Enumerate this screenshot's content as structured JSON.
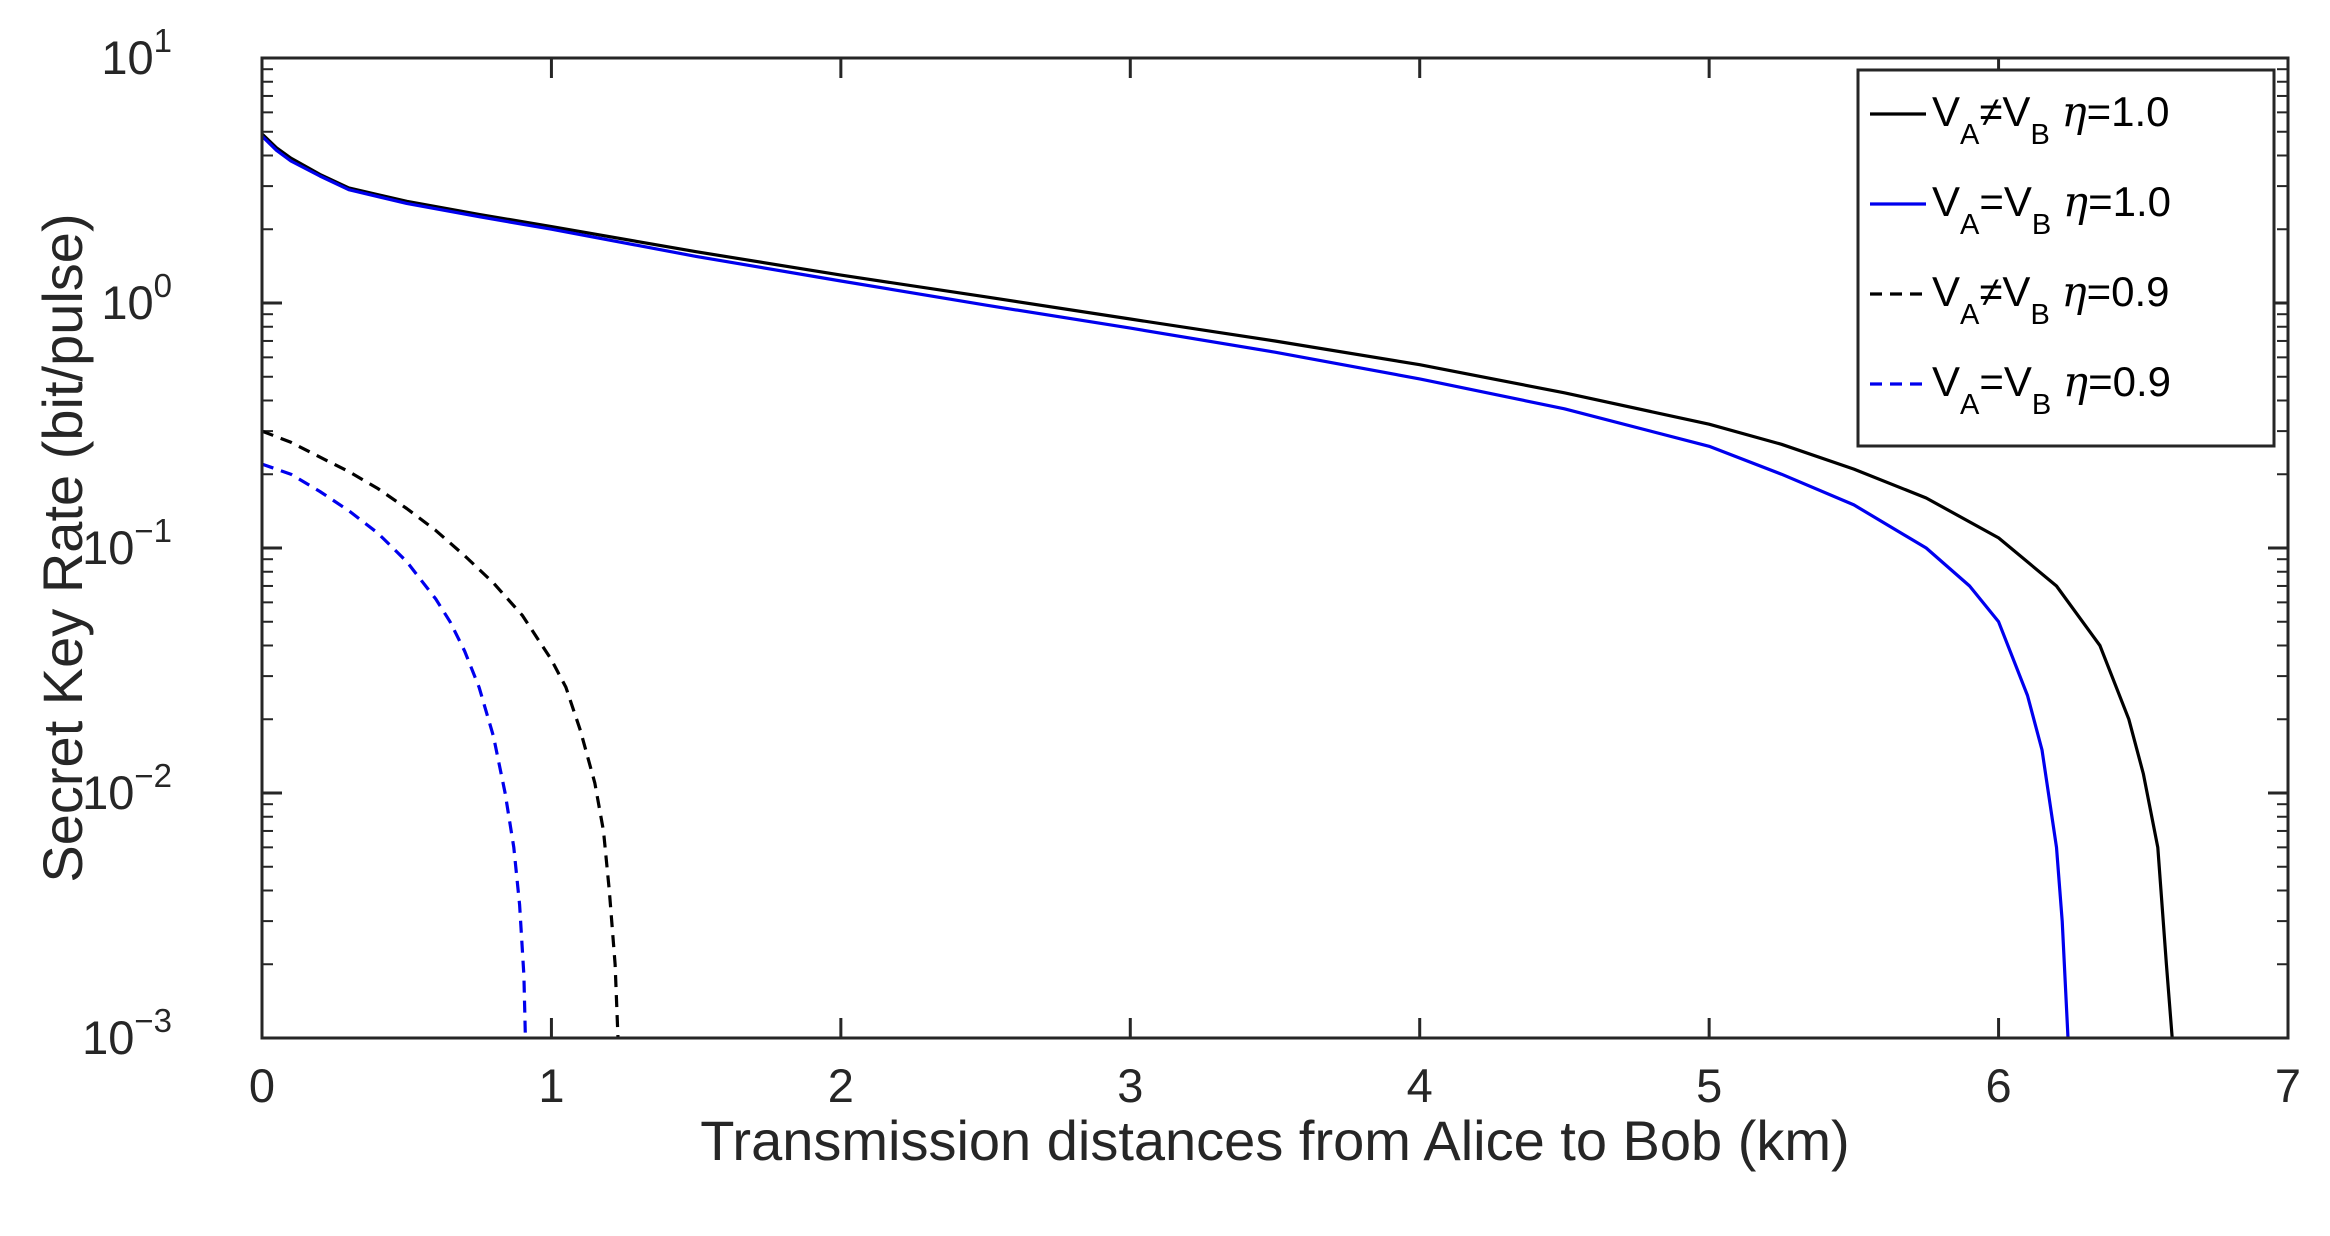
{
  "chart_data": {
    "type": "line",
    "xlabel": "Transmission distances from Alice to Bob (km)",
    "ylabel": "Secret Key Rate (bit/pulse)",
    "xlim": [
      0,
      7
    ],
    "ylim": [
      0.001,
      10
    ],
    "yscale": "log",
    "grid": false,
    "legend_position": "top-right",
    "x_ticks": [
      "0",
      "1",
      "2",
      "3",
      "4",
      "5",
      "6",
      "7"
    ],
    "y_ticks": [
      {
        "base": "10",
        "exp": "1"
      },
      {
        "base": "10",
        "exp": "0"
      },
      {
        "base": "10",
        "exp": "−1"
      },
      {
        "base": "10",
        "exp": "−2"
      },
      {
        "base": "10",
        "exp": "−3"
      }
    ],
    "series": [
      {
        "name": "VA≠VB η=1.0",
        "legend": {
          "v": "V",
          "sub_a": "A",
          "op": "≠",
          "sub_b": "B",
          "eta": "η",
          "value": "=1.0"
        },
        "color": "#000000",
        "dash": "solid",
        "x": [
          0,
          0.05,
          0.1,
          0.2,
          0.3,
          0.5,
          0.75,
          1,
          1.5,
          2,
          2.5,
          3,
          3.5,
          4,
          4.5,
          5,
          5.25,
          5.5,
          5.75,
          6,
          6.2,
          6.35,
          6.45,
          6.5,
          6.55,
          6.58,
          6.6
        ],
        "y": [
          4.9,
          4.3,
          3.9,
          3.35,
          2.95,
          2.6,
          2.3,
          2.05,
          1.62,
          1.3,
          1.06,
          0.86,
          0.7,
          0.56,
          0.43,
          0.32,
          0.265,
          0.21,
          0.16,
          0.11,
          0.07,
          0.04,
          0.02,
          0.012,
          0.006,
          0.002,
          0.001
        ]
      },
      {
        "name": "VA=VB η=1.0",
        "legend": {
          "v": "V",
          "sub_a": "A",
          "op": "=",
          "sub_b": "B",
          "eta": "η",
          "value": "=1.0"
        },
        "color": "#0000ee",
        "dash": "solid",
        "x": [
          0,
          0.05,
          0.1,
          0.2,
          0.3,
          0.5,
          0.75,
          1,
          1.5,
          2,
          2.5,
          3,
          3.5,
          4,
          4.5,
          5,
          5.25,
          5.5,
          5.75,
          5.9,
          6.0,
          6.1,
          6.15,
          6.2,
          6.22,
          6.24
        ],
        "y": [
          4.8,
          4.2,
          3.8,
          3.3,
          2.9,
          2.55,
          2.25,
          2.0,
          1.55,
          1.23,
          0.98,
          0.79,
          0.63,
          0.49,
          0.37,
          0.26,
          0.2,
          0.15,
          0.1,
          0.07,
          0.05,
          0.025,
          0.015,
          0.006,
          0.003,
          0.001
        ]
      },
      {
        "name": "VA≠VB η=0.9",
        "legend": {
          "v": "V",
          "sub_a": "A",
          "op": "≠",
          "sub_b": "B",
          "eta": "η",
          "value": "=0.9"
        },
        "color": "#000000",
        "dash": "dashed",
        "x": [
          0,
          0.1,
          0.2,
          0.3,
          0.4,
          0.5,
          0.6,
          0.7,
          0.8,
          0.9,
          1.0,
          1.05,
          1.1,
          1.15,
          1.18,
          1.2,
          1.22,
          1.23
        ],
        "y": [
          0.3,
          0.27,
          0.235,
          0.205,
          0.175,
          0.145,
          0.118,
          0.093,
          0.072,
          0.053,
          0.035,
          0.027,
          0.018,
          0.011,
          0.007,
          0.004,
          0.002,
          0.001
        ]
      },
      {
        "name": "VA=VB η=0.9",
        "legend": {
          "v": "V",
          "sub_a": "A",
          "op": "=",
          "sub_b": "B",
          "eta": "η",
          "value": "=0.9"
        },
        "color": "#0000ee",
        "dash": "dashed",
        "x": [
          0,
          0.1,
          0.2,
          0.3,
          0.4,
          0.5,
          0.6,
          0.65,
          0.7,
          0.75,
          0.8,
          0.84,
          0.87,
          0.89,
          0.905,
          0.91
        ],
        "y": [
          0.22,
          0.2,
          0.17,
          0.142,
          0.115,
          0.088,
          0.062,
          0.05,
          0.038,
          0.027,
          0.017,
          0.01,
          0.006,
          0.0035,
          0.0018,
          0.001
        ]
      }
    ]
  }
}
